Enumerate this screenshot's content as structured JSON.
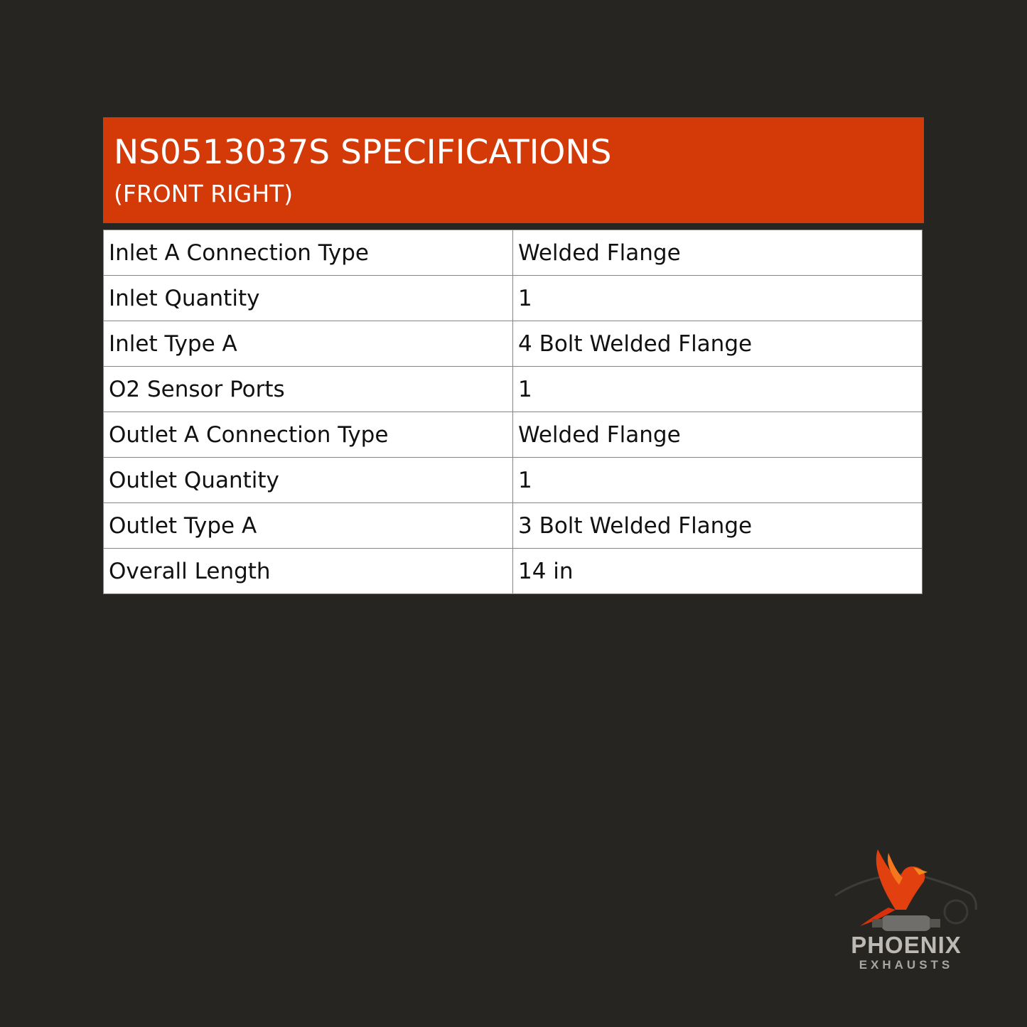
{
  "header": {
    "title": "NS0513037S SPECIFICATIONS",
    "subtitle": "(FRONT RIGHT)"
  },
  "colors": {
    "accent": "#d43a08",
    "background": "#262521",
    "table_border": "#e0643a"
  },
  "specs": [
    {
      "label": "Inlet A Connection Type",
      "value": "Welded Flange"
    },
    {
      "label": "Inlet Quantity",
      "value": "1"
    },
    {
      "label": "Inlet Type A",
      "value": "4 Bolt Welded Flange"
    },
    {
      "label": "O2 Sensor Ports",
      "value": "1"
    },
    {
      "label": "Outlet A Connection Type",
      "value": "Welded Flange"
    },
    {
      "label": "Outlet Quantity",
      "value": "1"
    },
    {
      "label": "Outlet Type A",
      "value": "3 Bolt Welded Flange"
    },
    {
      "label": "Overall Length",
      "value": "14 in"
    }
  ],
  "logo": {
    "name": "PHOENIX",
    "tagline": "EXHAUSTS",
    "icon": "phoenix-on-catalytic-converter-icon"
  }
}
